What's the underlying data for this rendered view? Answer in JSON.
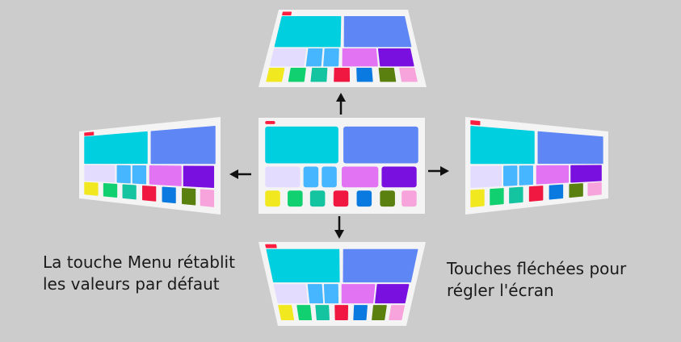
{
  "captions": {
    "menu_reset": "La touche Menu rétablit les valeurs par défaut",
    "arrows_adjust": "Touches fléchées pour régler l'écran"
  },
  "screen_variants": [
    {
      "name": "screen-center",
      "shape": "normal"
    },
    {
      "name": "screen-top",
      "shape": "keystone-narrow-top"
    },
    {
      "name": "screen-bottom",
      "shape": "keystone-narrow-bottom"
    },
    {
      "name": "screen-left",
      "shape": "keystone-narrow-left"
    },
    {
      "name": "screen-right",
      "shape": "keystone-narrow-right"
    }
  ],
  "arrows": [
    "arrow-up",
    "arrow-down",
    "arrow-left",
    "arrow-right"
  ],
  "colors": {
    "background": "#cccccc",
    "screen": "#f4f4f4",
    "indicator": "#ff1e40",
    "tile_cyan": "#00cfe0",
    "tile_blue": "#5e86f5",
    "tile_lavender": "#e4dcff",
    "tile_sky": "#45b6ff",
    "tile_magenta": "#e274f4",
    "tile_purple": "#7a10e0",
    "key_yellow": "#f2e820",
    "key_green": "#10d070",
    "key_teal": "#14c4a0",
    "key_red": "#f01840",
    "key_blue": "#0a7ae0",
    "key_olive": "#5a8010",
    "key_pink": "#f8a4dc"
  }
}
